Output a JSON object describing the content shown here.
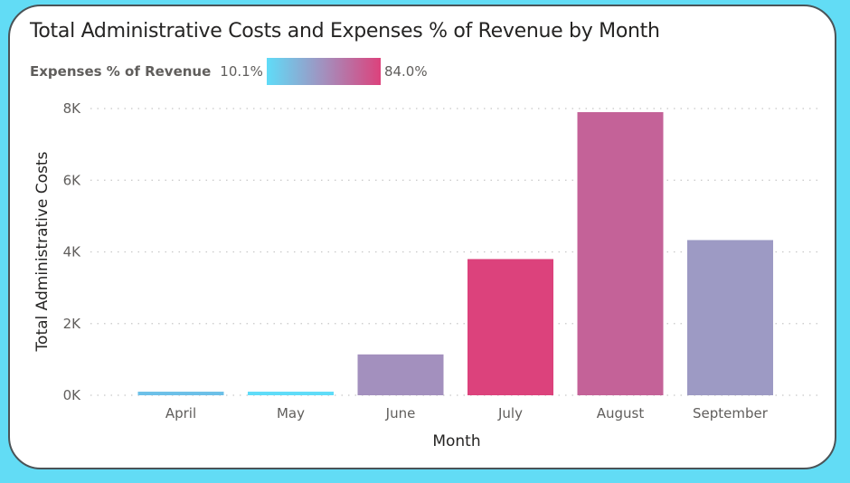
{
  "chart_data": {
    "type": "bar",
    "title": "Total Administrative Costs and Expenses % of Revenue by Month",
    "xlabel": "Month",
    "ylabel": "Total Administrative Costs",
    "categories": [
      "April",
      "May",
      "June",
      "July",
      "August",
      "September"
    ],
    "values": [
      100,
      100,
      1140,
      3800,
      7900,
      4330
    ],
    "bar_colors": [
      "#6cc0e8",
      "#5fdcf8",
      "#a390be",
      "#dc427c",
      "#c46298",
      "#9d9ac4"
    ],
    "ylim": [
      0,
      8000
    ],
    "yticks": [
      0,
      2000,
      4000,
      6000,
      8000
    ],
    "ytick_labels": [
      "0K",
      "2K",
      "4K",
      "6K",
      "8K"
    ],
    "grid": true,
    "legend": {
      "title": "Expenses % of Revenue",
      "min_label": "10.1%",
      "max_label": "84.0%",
      "gradient_start": "#5fdcf8",
      "gradient_mid": "#a390be",
      "gradient_end": "#dc427c",
      "placement": "top-left"
    }
  }
}
